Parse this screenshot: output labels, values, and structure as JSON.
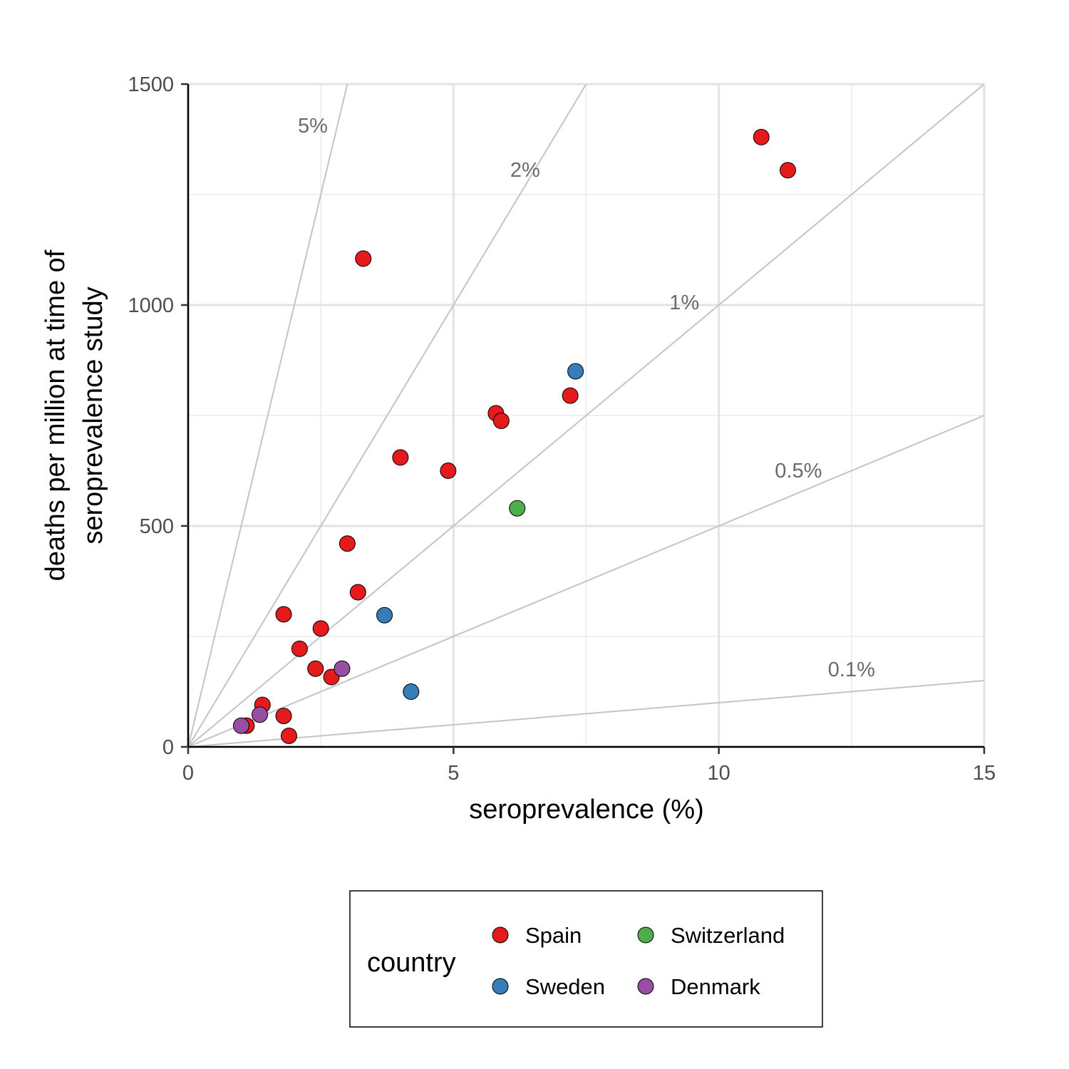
{
  "chart_data": {
    "type": "scatter",
    "title": "",
    "xlabel": "seroprevalence (%)",
    "ylabel_lines": [
      "deaths per million at time of",
      "seroprevalence study"
    ],
    "xlim": [
      0,
      15
    ],
    "ylim": [
      0,
      1500
    ],
    "x_ticks": [
      0,
      5,
      10,
      15
    ],
    "y_ticks": [
      0,
      500,
      1000,
      1500
    ],
    "x_minor_ticks": [
      2.5,
      7.5,
      12.5
    ],
    "y_minor_ticks": [
      250,
      750,
      1250
    ],
    "grid": true,
    "reference_lines": [
      {
        "label": "5%",
        "slope": 500,
        "label_x": 2.35,
        "label_y": 1390
      },
      {
        "label": "2%",
        "slope": 200,
        "label_x": 6.35,
        "label_y": 1290
      },
      {
        "label": "1%",
        "slope": 100,
        "label_x": 9.35,
        "label_y": 990
      },
      {
        "label": "0.5%",
        "slope": 50,
        "label_x": 11.5,
        "label_y": 610
      },
      {
        "label": "0.1%",
        "slope": 10,
        "label_x": 12.5,
        "label_y": 160
      }
    ],
    "legend": {
      "title": "country",
      "placement": "bottom",
      "entries": [
        {
          "name": "Spain",
          "color": "#E41A1C"
        },
        {
          "name": "Switzerland",
          "color": "#4DAF4A"
        },
        {
          "name": "Sweden",
          "color": "#377EB8"
        },
        {
          "name": "Denmark",
          "color": "#984EA3"
        }
      ]
    },
    "series": [
      {
        "name": "Spain",
        "color": "#E41A1C",
        "points": [
          [
            10.8,
            1380
          ],
          [
            11.3,
            1305
          ],
          [
            3.3,
            1105
          ],
          [
            7.2,
            795
          ],
          [
            5.8,
            755
          ],
          [
            5.9,
            738
          ],
          [
            4.0,
            655
          ],
          [
            4.9,
            625
          ],
          [
            3.0,
            460
          ],
          [
            3.2,
            350
          ],
          [
            1.8,
            300
          ],
          [
            2.5,
            268
          ],
          [
            2.1,
            222
          ],
          [
            2.4,
            177
          ],
          [
            2.7,
            158
          ],
          [
            1.4,
            95
          ],
          [
            1.8,
            70
          ],
          [
            1.1,
            48
          ],
          [
            1.9,
            25
          ]
        ]
      },
      {
        "name": "Sweden",
        "color": "#377EB8",
        "points": [
          [
            7.3,
            850
          ],
          [
            3.7,
            298
          ],
          [
            4.2,
            125
          ]
        ]
      },
      {
        "name": "Switzerland",
        "color": "#4DAF4A",
        "points": [
          [
            6.2,
            540
          ]
        ]
      },
      {
        "name": "Denmark",
        "color": "#984EA3",
        "points": [
          [
            2.9,
            177
          ],
          [
            1.35,
            73
          ],
          [
            1.0,
            48
          ]
        ]
      }
    ]
  }
}
